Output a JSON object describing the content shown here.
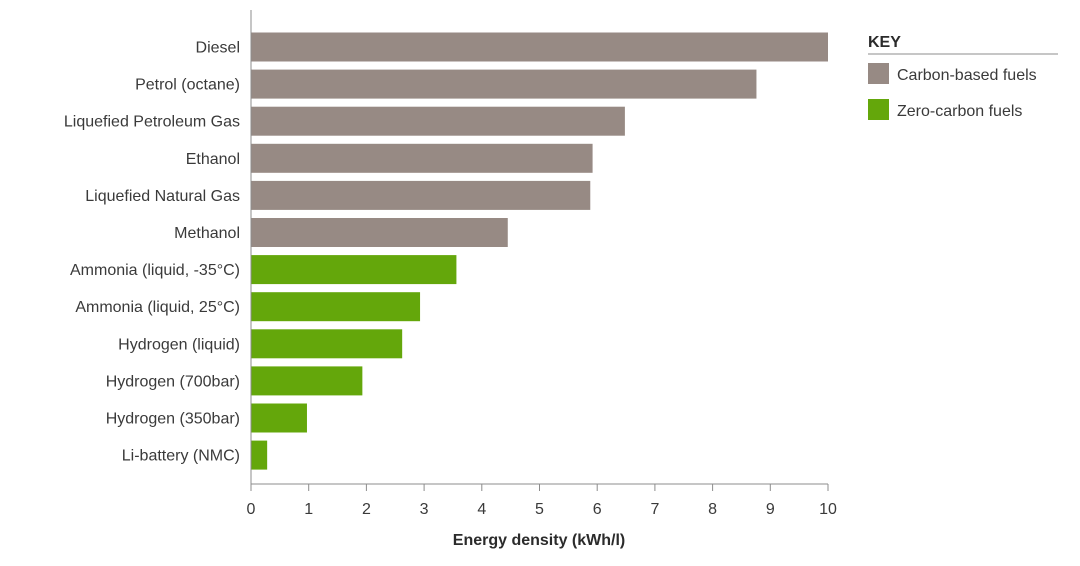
{
  "chart_data": {
    "type": "bar",
    "orientation": "horizontal",
    "categories": [
      "Diesel",
      "Petrol (octane)",
      "Liquefied Petroleum Gas",
      "Ethanol",
      "Liquefied Natural Gas",
      "Methanol",
      "Ammonia (liquid, -35°C)",
      "Ammonia (liquid, 25°C)",
      "Hydrogen (liquid)",
      "Hydrogen (700bar)",
      "Hydrogen (350bar)",
      "Li-battery (NMC)"
    ],
    "values": [
      10.0,
      8.76,
      6.48,
      5.92,
      5.88,
      4.45,
      3.56,
      2.93,
      2.62,
      1.93,
      0.97,
      0.28
    ],
    "groups": [
      "carbon",
      "carbon",
      "carbon",
      "carbon",
      "carbon",
      "carbon",
      "zero",
      "zero",
      "zero",
      "zero",
      "zero",
      "zero"
    ],
    "xlabel": "Energy density (kWh/l)",
    "ylabel": "",
    "xlim": [
      0,
      10
    ],
    "xticks": [
      "0",
      "1",
      "2",
      "3",
      "4",
      "5",
      "6",
      "7",
      "8",
      "9",
      "10"
    ],
    "grid": false,
    "legend": {
      "title": "KEY",
      "placement": "right",
      "entries": [
        {
          "key": "carbon",
          "label": "Carbon-based fuels",
          "color": "#978a84"
        },
        {
          "key": "zero",
          "label": "Zero-carbon fuels",
          "color": "#64a70b"
        }
      ]
    }
  }
}
